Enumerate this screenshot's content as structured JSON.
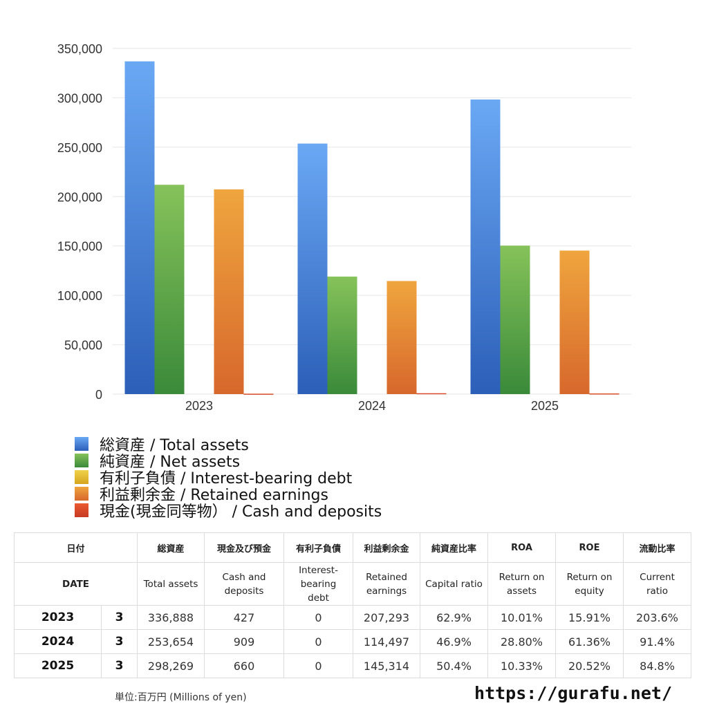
{
  "chart_data": {
    "type": "bar",
    "categories": [
      "2023",
      "2024",
      "2025"
    ],
    "ylim": [
      0,
      350000
    ],
    "yticks": [
      0,
      50000,
      100000,
      150000,
      200000,
      250000,
      300000,
      350000
    ],
    "ytick_labels": [
      "0",
      "50,000",
      "100,000",
      "150,000",
      "200,000",
      "250,000",
      "300,000",
      "350,000"
    ],
    "grid": true,
    "legend_position": "bottom-left",
    "series": [
      {
        "name": "総資産 / Total assets",
        "values": [
          336888,
          253654,
          298269
        ],
        "color_top": "#6aa8f4",
        "color_bottom": "#2c5fb8"
      },
      {
        "name": "純資産 / Net assets",
        "values": [
          211914,
          118963,
          150328
        ],
        "color_top": "#86c25a",
        "color_bottom": "#3a8a3a"
      },
      {
        "name": "有利子負債 / Interest-bearing debt",
        "values": [
          0,
          0,
          0
        ],
        "color_top": "#f0d24a",
        "color_bottom": "#d6a51f"
      },
      {
        "name": "利益剰余金 / Retained earnings",
        "values": [
          207293,
          114497,
          145314
        ],
        "color_top": "#efa53e",
        "color_bottom": "#d7682c"
      },
      {
        "name": "現金(現金同等物）  /  Cash and deposits",
        "values": [
          427,
          909,
          660
        ],
        "color_top": "#ea5a32",
        "color_bottom": "#c63a22"
      }
    ]
  },
  "table": {
    "header_jp": [
      "日付",
      "総資産",
      "現金及び預金",
      "有利子負債",
      "利益剰余金",
      "純資産比率",
      "ROA",
      "ROE",
      "流動比率"
    ],
    "header_en": [
      "DATE",
      "Total assets",
      "Cash and deposits",
      "Interest-bearing debt",
      "Retained earnings",
      "Capital ratio",
      "Return on assets",
      "Return on equity",
      "Current ratio"
    ],
    "rows": [
      {
        "year": "2023",
        "month": "3",
        "total_assets": "336,888",
        "cash": "427",
        "debt": "0",
        "retained": "207,293",
        "capital_ratio": "62.9%",
        "roa": "10.01%",
        "roe": "15.91%",
        "current_ratio": "203.6%"
      },
      {
        "year": "2024",
        "month": "3",
        "total_assets": "253,654",
        "cash": "909",
        "debt": "0",
        "retained": "114,497",
        "capital_ratio": "46.9%",
        "roa": "28.80%",
        "roe": "61.36%",
        "current_ratio": "91.4%"
      },
      {
        "year": "2025",
        "month": "3",
        "total_assets": "298,269",
        "cash": "660",
        "debt": "0",
        "retained": "145,314",
        "capital_ratio": "50.4%",
        "roa": "10.33%",
        "roe": "20.52%",
        "current_ratio": "84.8%"
      }
    ]
  },
  "footer": {
    "unit": "単位:百万円 (Millions of yen)",
    "url": "https://gurafu.net/"
  }
}
